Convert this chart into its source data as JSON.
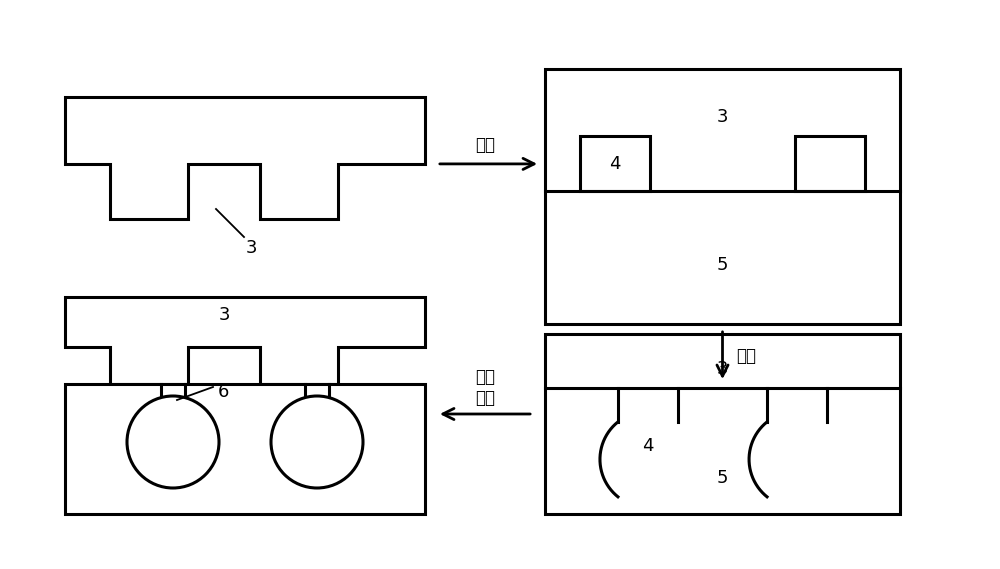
{
  "bg_color": "#ffffff",
  "lc": "#000000",
  "lw": 2.2,
  "lw_thin": 1.3,
  "fs_label": 13,
  "fs_step": 12,
  "text_jiechu": "接触",
  "text_chengxing": "成形",
  "text_guihua_tuomo": "固化\n脱模",
  "label3": "3",
  "label4": "4",
  "label5": "5",
  "label6": "6"
}
